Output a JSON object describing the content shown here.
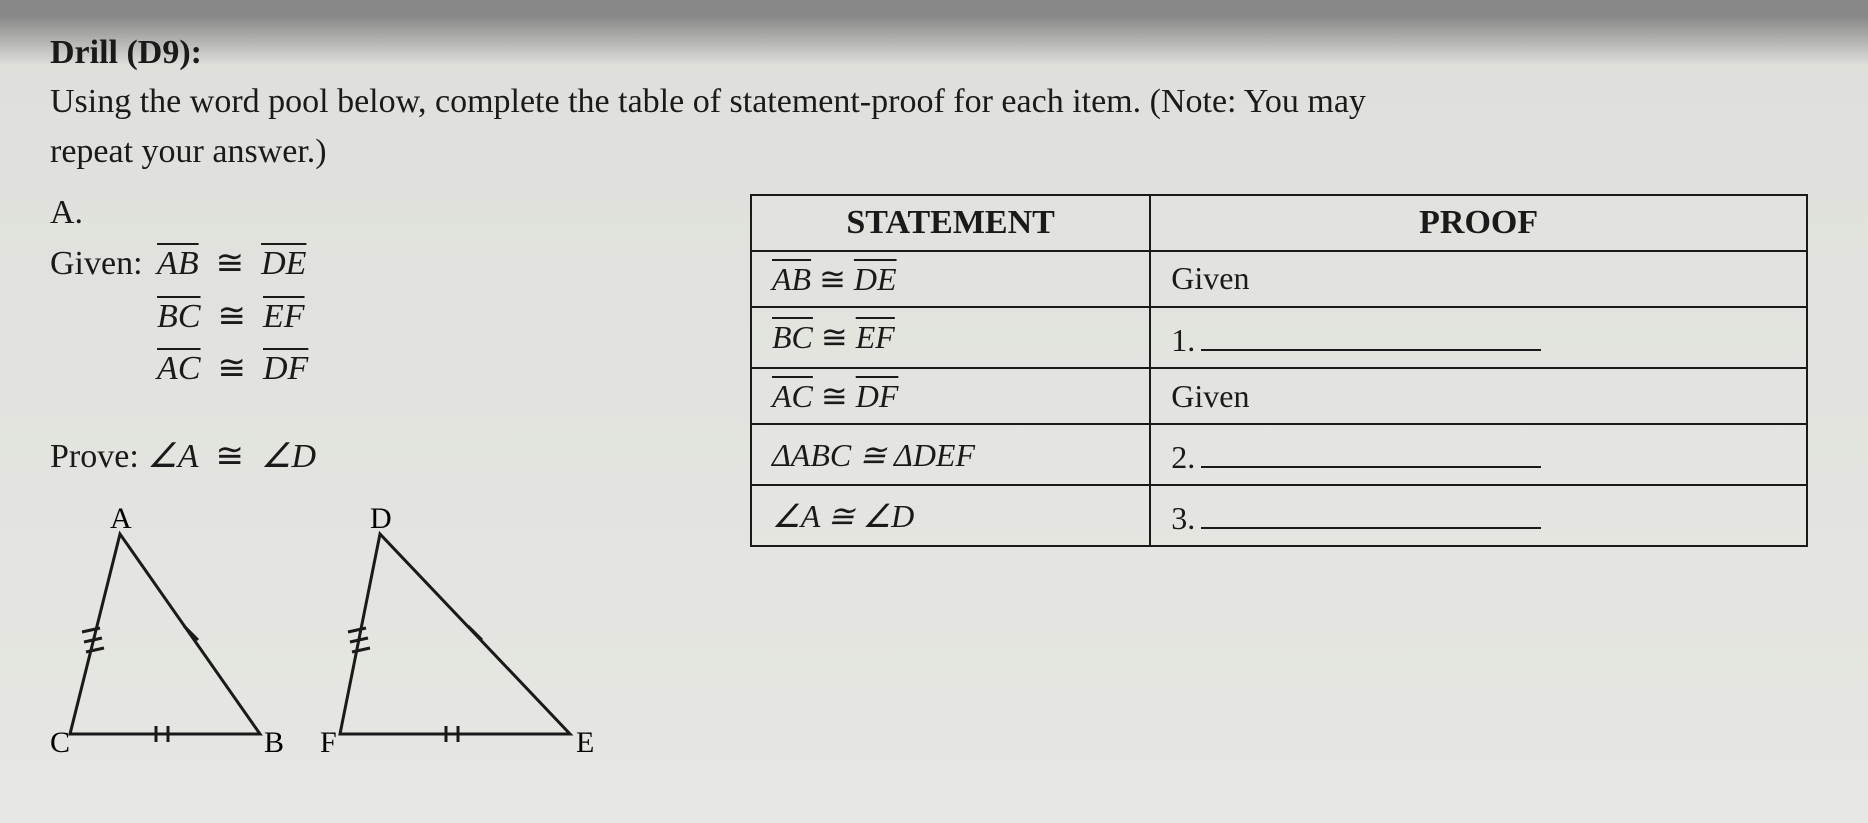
{
  "drill": {
    "label": "Drill (D9):",
    "instruction_a": "Using the word pool below, complete the table of statement-proof for each item. (Note: You may",
    "instruction_b": "repeat your answer.)"
  },
  "item": {
    "label": "A.",
    "given_label": "Given:",
    "given_1_lhs": "AB",
    "given_1_rhs": "DE",
    "given_2_lhs": "BC",
    "given_2_rhs": "EF",
    "given_3_lhs": "AC",
    "given_3_rhs": "DF",
    "cong": "≅",
    "prove_label": "Prove:",
    "prove_lhs": "∠A",
    "prove_rhs": "∠D"
  },
  "triangles": {
    "t1": {
      "A": "A",
      "B": "B",
      "C": "C"
    },
    "t2": {
      "D": "D",
      "E": "E",
      "F": "F"
    },
    "stroke": "#1a1a1a",
    "stroke_width": 3
  },
  "table": {
    "header_statement": "STATEMENT",
    "header_proof": "PROOF",
    "rows": [
      {
        "s_lhs": "AB",
        "s_rhs": "DE",
        "s_over": true,
        "p_text": "Given",
        "p_blank_num": ""
      },
      {
        "s_lhs": "BC",
        "s_rhs": "EF",
        "s_over": true,
        "p_text": "",
        "p_blank_num": "1."
      },
      {
        "s_lhs": "AC",
        "s_rhs": "DF",
        "s_over": true,
        "p_text": "Given",
        "p_blank_num": ""
      },
      {
        "s_plain": "ΔABC  ≅  ΔDEF",
        "p_text": "",
        "p_blank_num": "2."
      },
      {
        "s_plain": "∠A  ≅  ∠D",
        "p_text": "",
        "p_blank_num": "3."
      }
    ]
  }
}
